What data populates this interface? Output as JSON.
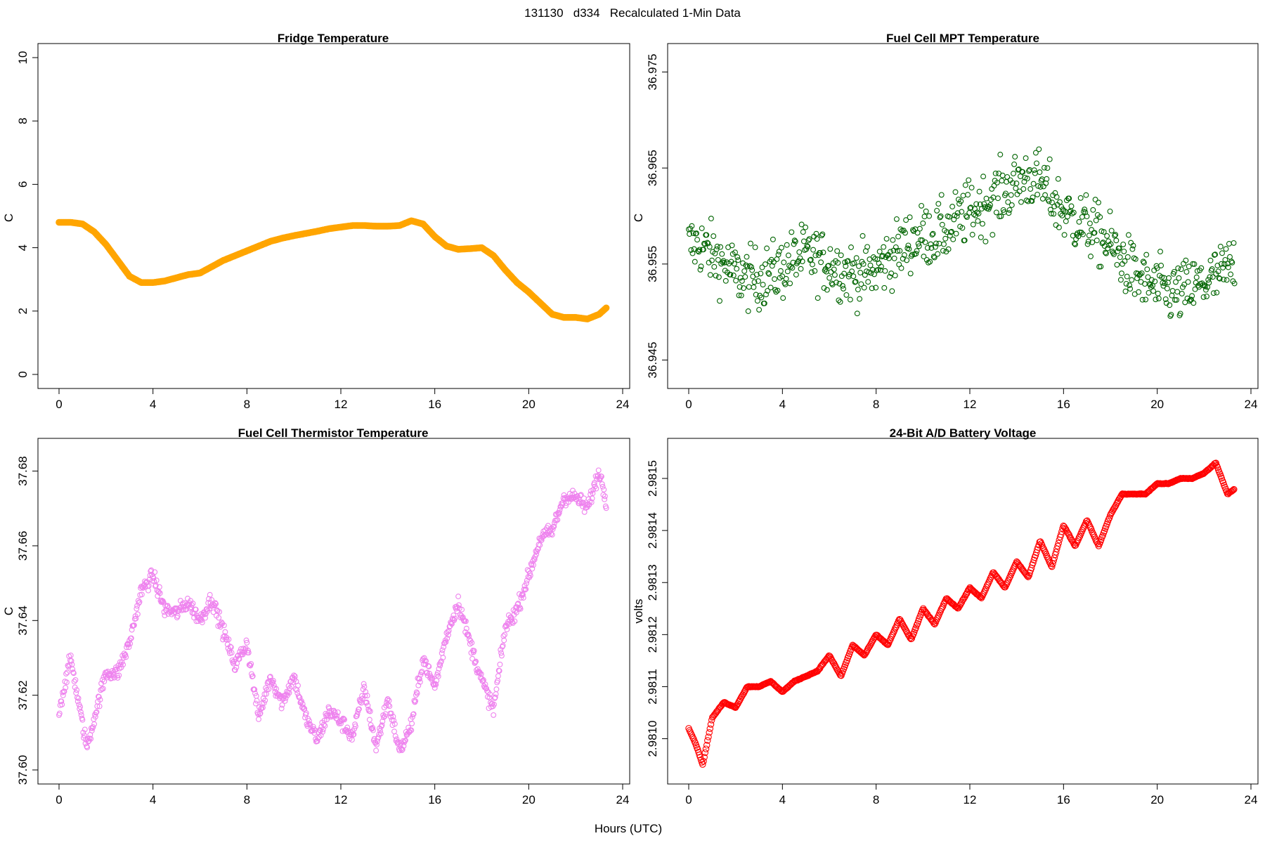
{
  "figure": {
    "suptitle": "131130   d334   Recalculated 1-Min Data",
    "xlabel": "Hours (UTC)"
  },
  "chart_data": [
    {
      "type": "line",
      "title": "Fridge Temperature",
      "xlabel": "",
      "ylabel": "C",
      "xlim": [
        0,
        24
      ],
      "ylim": [
        0,
        10
      ],
      "xticks": [
        0,
        4,
        8,
        12,
        16,
        20,
        24
      ],
      "yticks": [
        0,
        2,
        4,
        6,
        8,
        10
      ],
      "ytick_labels": [
        "0",
        "2",
        "4",
        "6",
        "8",
        "10"
      ],
      "color": "#ffa500",
      "marker": "filled-circle",
      "grid": false,
      "series": [
        {
          "x": [
            0,
            0.5,
            1,
            1.5,
            2,
            2.5,
            3,
            3.5,
            4,
            4.5,
            5,
            5.5,
            6,
            6.5,
            7,
            7.5,
            8,
            8.5,
            9,
            9.5,
            10,
            10.5,
            11,
            11.5,
            12,
            12.5,
            13,
            13.5,
            14,
            14.5,
            15,
            15.5,
            16,
            16.5,
            17,
            17.5,
            18,
            18.5,
            19,
            19.5,
            20,
            20.5,
            21,
            21.5,
            22,
            22.5,
            23,
            23.3
          ],
          "y": [
            4.8,
            4.8,
            4.75,
            4.5,
            4.1,
            3.6,
            3.1,
            2.9,
            2.9,
            2.95,
            3.05,
            3.15,
            3.2,
            3.4,
            3.6,
            3.75,
            3.9,
            4.05,
            4.2,
            4.3,
            4.38,
            4.45,
            4.52,
            4.6,
            4.65,
            4.7,
            4.7,
            4.68,
            4.68,
            4.7,
            4.85,
            4.75,
            4.35,
            4.05,
            3.95,
            3.97,
            4.0,
            3.75,
            3.3,
            2.9,
            2.6,
            2.25,
            1.9,
            1.8,
            1.8,
            1.75,
            1.9,
            2.1
          ]
        }
      ]
    },
    {
      "type": "scatter",
      "title": "Fuel Cell MPT Temperature",
      "xlabel": "",
      "ylabel": "C",
      "xlim": [
        0,
        24
      ],
      "ylim": [
        36.9435,
        36.9765
      ],
      "xticks": [
        0,
        4,
        8,
        12,
        16,
        20,
        24
      ],
      "yticks": [
        36.945,
        36.955,
        36.965,
        36.975
      ],
      "ytick_labels": [
        "36.945",
        "36.955",
        "36.965",
        "36.975"
      ],
      "color": "#006400",
      "marker": "open-circle",
      "grid": false,
      "series": [
        {
          "x": [
            0,
            0.5,
            1,
            1.5,
            2,
            2.5,
            3,
            3.5,
            4,
            4.5,
            5,
            5.5,
            6,
            6.5,
            7,
            7.5,
            8,
            8.5,
            9,
            9.5,
            10,
            10.5,
            11,
            11.5,
            12,
            12.5,
            13,
            13.5,
            14,
            14.5,
            15,
            15.5,
            16,
            16.5,
            17,
            17.5,
            18,
            18.5,
            19,
            19.5,
            20,
            20.5,
            21,
            21.5,
            22,
            22.5,
            23,
            23.3
          ],
          "y": [
            36.957,
            36.957,
            36.956,
            36.955,
            36.954,
            36.9535,
            36.9535,
            36.954,
            36.9545,
            36.9555,
            36.956,
            36.9555,
            36.955,
            36.9545,
            36.954,
            36.954,
            36.9545,
            36.9555,
            36.9565,
            36.9575,
            36.958,
            36.958,
            36.9585,
            36.9595,
            36.9605,
            36.961,
            36.962,
            36.9625,
            36.9635,
            36.964,
            36.9635,
            36.962,
            36.9605,
            36.9595,
            36.959,
            36.958,
            36.957,
            36.9555,
            36.954,
            36.953,
            36.9525,
            36.952,
            36.952,
            36.9525,
            36.953,
            36.9535,
            36.9545,
            36.955
          ]
        }
      ]
    },
    {
      "type": "scatter",
      "title": "Fuel Cell Thermistor Temperature",
      "xlabel": "",
      "ylabel": "C",
      "xlim": [
        0,
        24
      ],
      "ylim": [
        37.6,
        37.685
      ],
      "xticks": [
        0,
        4,
        8,
        12,
        16,
        20,
        24
      ],
      "yticks": [
        37.6,
        37.62,
        37.64,
        37.66,
        37.68
      ],
      "ytick_labels": [
        "37.60",
        "37.62",
        "37.64",
        "37.66",
        "37.68"
      ],
      "color": "#ee82ee",
      "marker": "open-circle",
      "grid": false,
      "series": [
        {
          "x": [
            0,
            0.5,
            1,
            1.2,
            1.5,
            2,
            2.5,
            3,
            3.5,
            4,
            4.5,
            5,
            5.5,
            6,
            6.5,
            7,
            7.5,
            8,
            8.5,
            9,
            9.5,
            10,
            10.5,
            11,
            11.5,
            12,
            12.5,
            13,
            13.5,
            14,
            14.5,
            15,
            15.5,
            16,
            16.5,
            17,
            17.5,
            18,
            18.5,
            19,
            19.5,
            20,
            20.5,
            21,
            21.5,
            22,
            22.5,
            23,
            23.3
          ],
          "y": [
            37.616,
            37.63,
            37.612,
            37.606,
            37.614,
            37.626,
            37.626,
            37.634,
            37.648,
            37.652,
            37.643,
            37.642,
            37.645,
            37.64,
            37.646,
            37.637,
            37.628,
            37.634,
            37.614,
            37.625,
            37.618,
            37.625,
            37.614,
            37.608,
            37.616,
            37.613,
            37.609,
            37.622,
            37.606,
            37.619,
            37.605,
            37.612,
            37.63,
            37.622,
            37.636,
            37.645,
            37.634,
            37.624,
            37.616,
            37.638,
            37.643,
            37.652,
            37.662,
            37.664,
            37.673,
            37.673,
            37.67,
            37.68,
            37.672
          ]
        }
      ]
    },
    {
      "type": "line",
      "title": "24-Bit A/D Battery Voltage",
      "xlabel": "",
      "ylabel": "volts",
      "xlim": [
        0,
        24
      ],
      "ylim": [
        2.98094,
        2.98155
      ],
      "xticks": [
        0,
        4,
        8,
        12,
        16,
        20,
        24
      ],
      "yticks": [
        2.981,
        2.9811,
        2.9812,
        2.9813,
        2.9814,
        2.9815
      ],
      "ytick_labels": [
        "2.9810",
        "2.9811",
        "2.9812",
        "2.9813",
        "2.9814",
        "2.9815"
      ],
      "color": "#ff0000",
      "marker": "open-circle",
      "grid": false,
      "series": [
        {
          "x": [
            0,
            0.3,
            0.6,
            1,
            1.5,
            2,
            2.5,
            3,
            3.5,
            4,
            4.5,
            5,
            5.5,
            6,
            6.5,
            7,
            7.5,
            8,
            8.5,
            9,
            9.5,
            10,
            10.5,
            11,
            11.5,
            12,
            12.5,
            13,
            13.5,
            14,
            14.5,
            15,
            15.5,
            16,
            16.5,
            17,
            17.5,
            18,
            18.5,
            19,
            19.5,
            20,
            20.5,
            21,
            21.5,
            22,
            22.5,
            23,
            23.3
          ],
          "y": [
            2.98102,
            2.98099,
            2.98095,
            2.98104,
            2.98107,
            2.98106,
            2.9811,
            2.9811,
            2.98111,
            2.98109,
            2.98111,
            2.98112,
            2.98113,
            2.98116,
            2.98112,
            2.98118,
            2.98116,
            2.9812,
            2.98118,
            2.98123,
            2.98119,
            2.98125,
            2.98122,
            2.98127,
            2.98125,
            2.98129,
            2.98127,
            2.98132,
            2.98129,
            2.98134,
            2.98131,
            2.98138,
            2.98133,
            2.98141,
            2.98137,
            2.98142,
            2.98137,
            2.98143,
            2.98147,
            2.98147,
            2.98147,
            2.98149,
            2.98149,
            2.9815,
            2.9815,
            2.98151,
            2.98153,
            2.98147,
            2.98148
          ]
        }
      ]
    }
  ]
}
